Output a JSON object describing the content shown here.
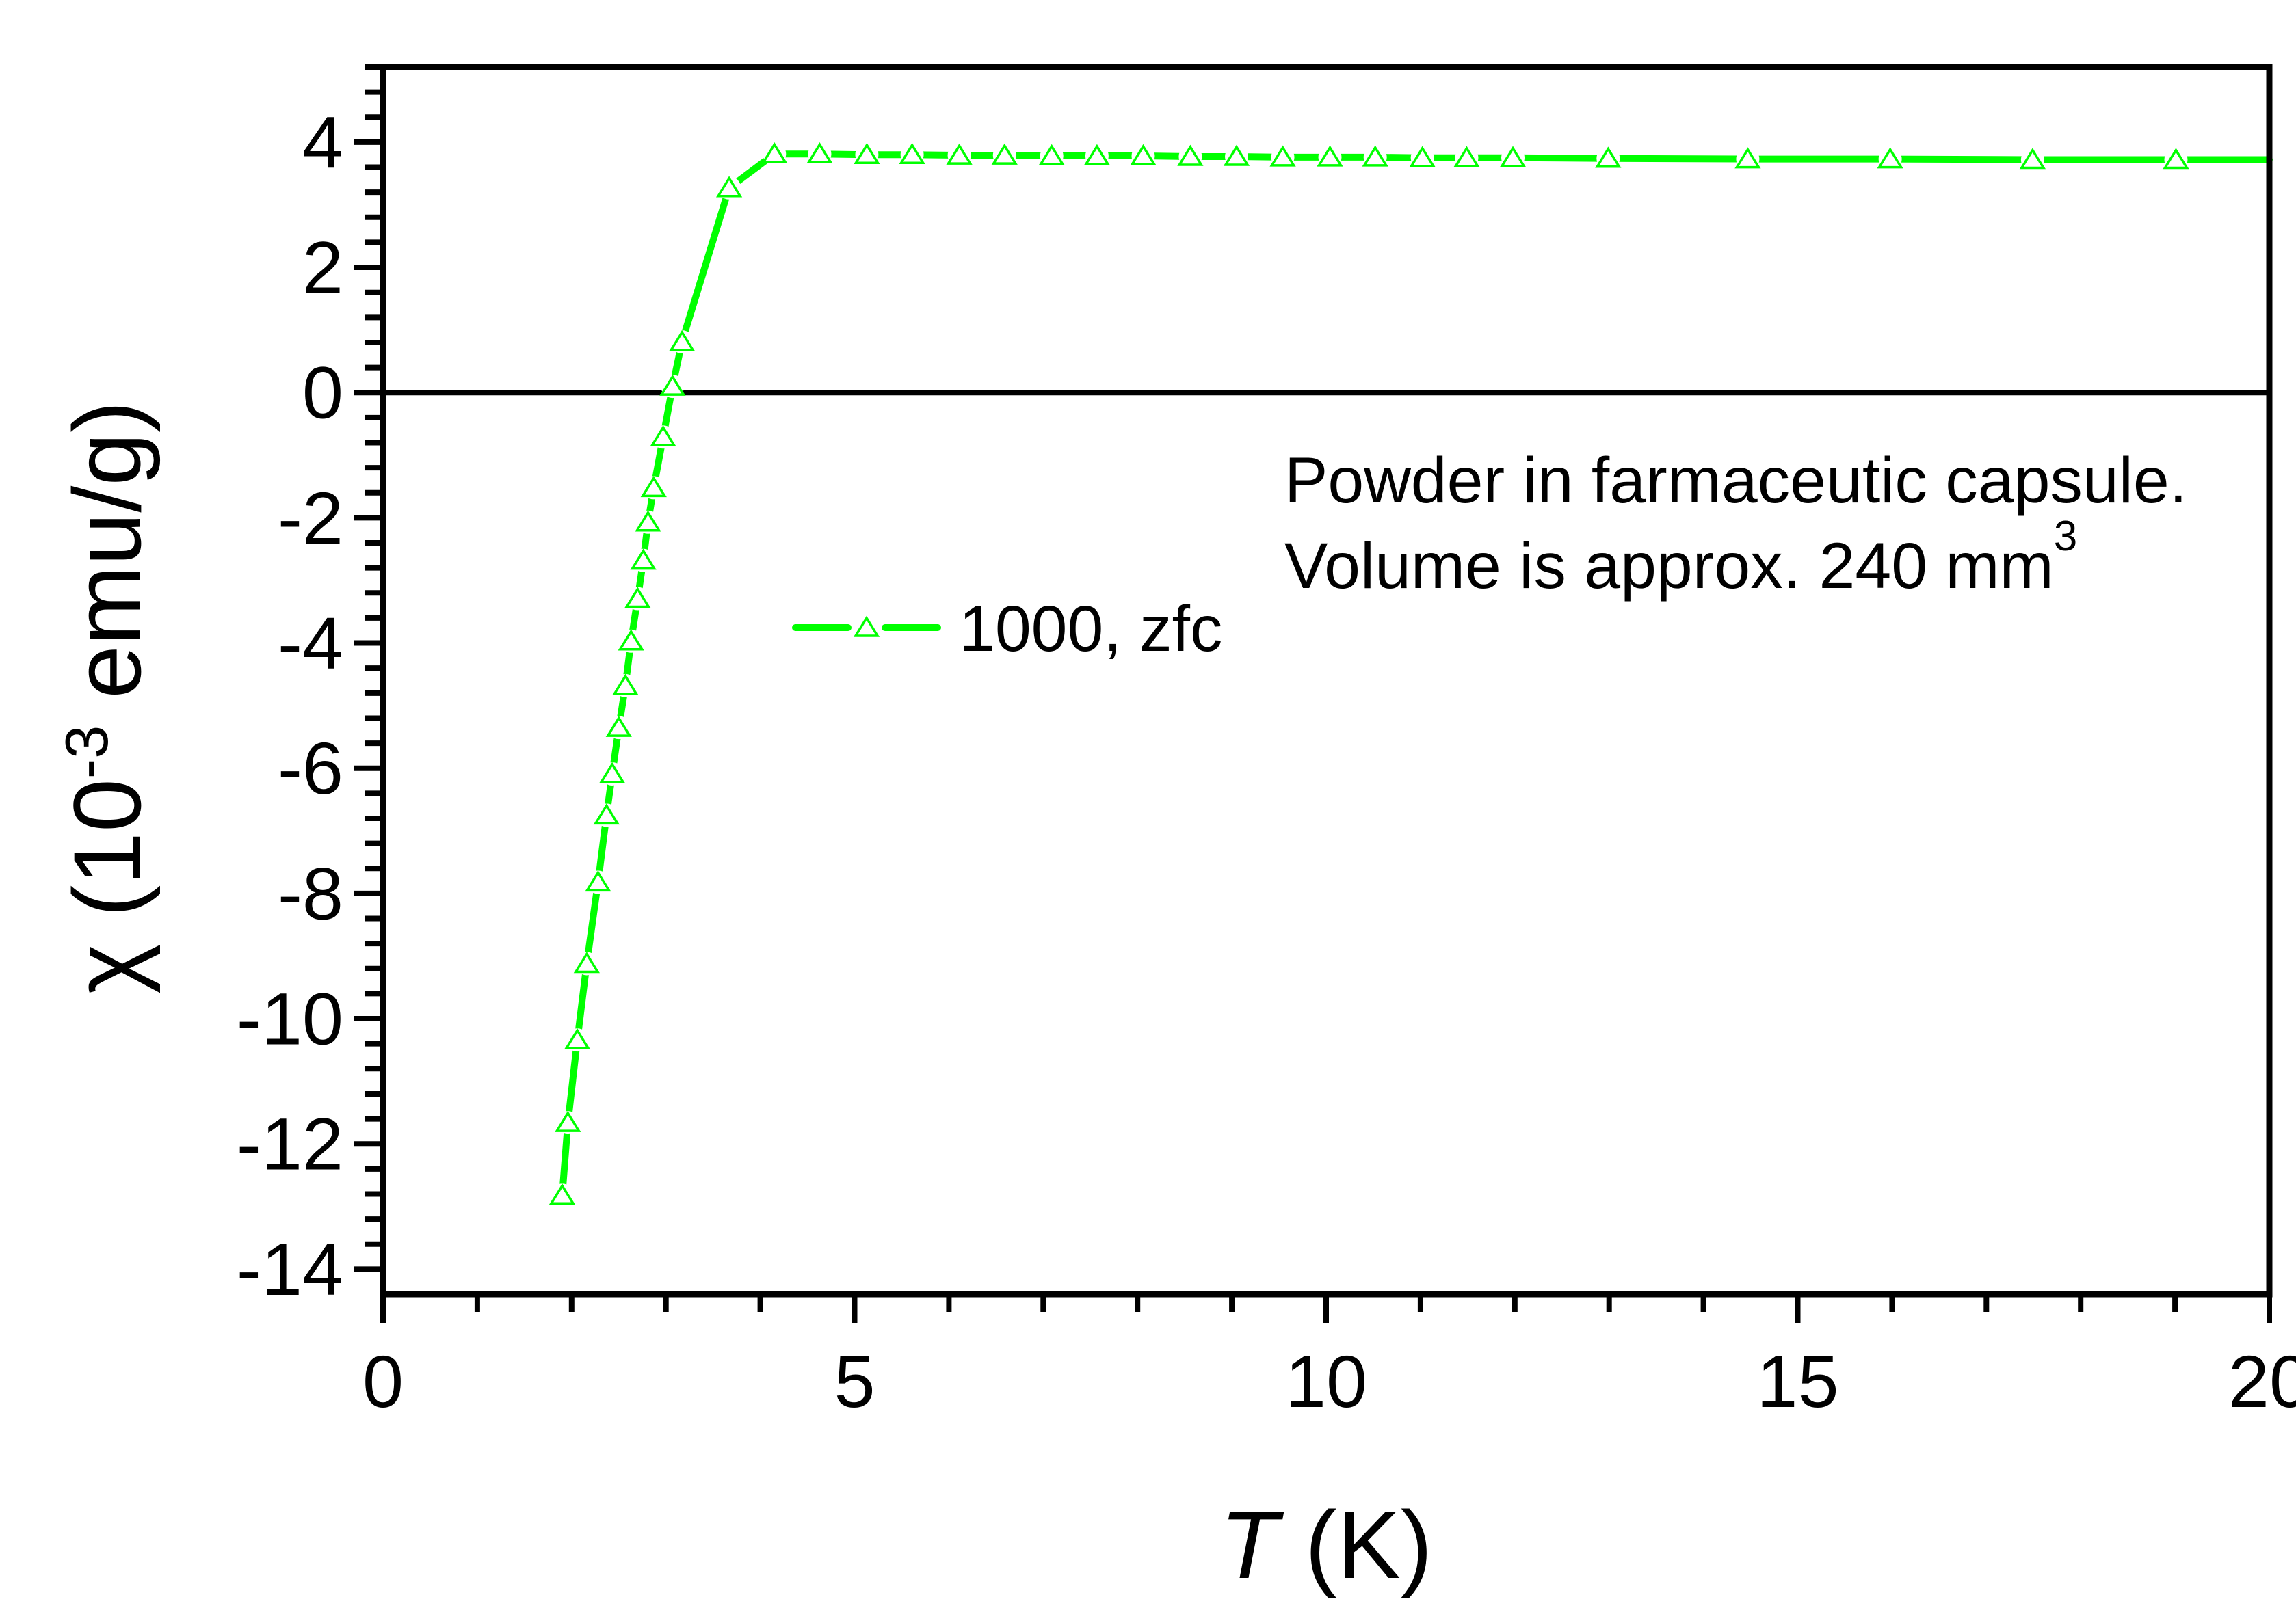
{
  "figure": {
    "background": "#ffffff",
    "frame_color": "#000000"
  },
  "chart_data": {
    "type": "line",
    "title": "",
    "xlabel": "T (K)",
    "ylabel": "χ (10⁻³ emu/g)",
    "xlabel_parts": {
      "italic": "T",
      "rest": " (K)"
    },
    "ylabel_parts": {
      "pre": "χ (10",
      "sup": "-3",
      "post": " emu/g)"
    },
    "xlim": [
      0,
      20
    ],
    "ylim": [
      -14.4,
      5.2
    ],
    "x_major_ticks": [
      0,
      5,
      10,
      15,
      20
    ],
    "x_tick_labels": [
      "0",
      "5",
      "10",
      "15",
      "20"
    ],
    "x_minor_step": 1,
    "y_major_ticks": [
      4,
      2,
      0,
      -2,
      -4,
      -6,
      -8,
      -10,
      -12,
      -14
    ],
    "y_tick_labels": [
      "4",
      "2",
      "0",
      "-2",
      "-4",
      "-6",
      "-8",
      "-10",
      "-12",
      "-14"
    ],
    "y_minor_step": 0.4,
    "zero_line": true,
    "grid": false,
    "legend_position": "inside-left-center",
    "series": [
      {
        "name": "1000, zfc",
        "color": "#00ff00",
        "marker": "open-triangle-up",
        "markers_on_last_point": false,
        "points": [
          [
            1.9,
            -12.82
          ],
          [
            1.96,
            -11.66
          ],
          [
            2.06,
            -10.34
          ],
          [
            2.16,
            -9.12
          ],
          [
            2.28,
            -7.82
          ],
          [
            2.37,
            -6.75
          ],
          [
            2.43,
            -6.09
          ],
          [
            2.5,
            -5.35
          ],
          [
            2.57,
            -4.68
          ],
          [
            2.63,
            -3.97
          ],
          [
            2.7,
            -3.29
          ],
          [
            2.76,
            -2.68
          ],
          [
            2.81,
            -2.07
          ],
          [
            2.87,
            -1.52
          ],
          [
            2.97,
            -0.71
          ],
          [
            3.07,
            0.1
          ],
          [
            3.17,
            0.81
          ],
          [
            3.67,
            3.27
          ],
          [
            4.15,
            3.81
          ],
          [
            4.63,
            3.81
          ],
          [
            5.13,
            3.8
          ],
          [
            5.61,
            3.8
          ],
          [
            6.11,
            3.79
          ],
          [
            6.59,
            3.79
          ],
          [
            7.09,
            3.78
          ],
          [
            7.57,
            3.78
          ],
          [
            8.06,
            3.78
          ],
          [
            8.56,
            3.77
          ],
          [
            9.05,
            3.77
          ],
          [
            9.54,
            3.76
          ],
          [
            10.04,
            3.76
          ],
          [
            10.52,
            3.76
          ],
          [
            11.02,
            3.75
          ],
          [
            11.49,
            3.75
          ],
          [
            11.98,
            3.75
          ],
          [
            12.99,
            3.74
          ],
          [
            14.47,
            3.73
          ],
          [
            15.98,
            3.73
          ],
          [
            17.49,
            3.72
          ],
          [
            19.01,
            3.72
          ],
          [
            20.0,
            3.72
          ]
        ]
      }
    ],
    "annotation": {
      "line1": "Powder in farmaceutic capsule.",
      "line2": "Volume is approx. 240 mm",
      "line2_sup": "3"
    }
  }
}
